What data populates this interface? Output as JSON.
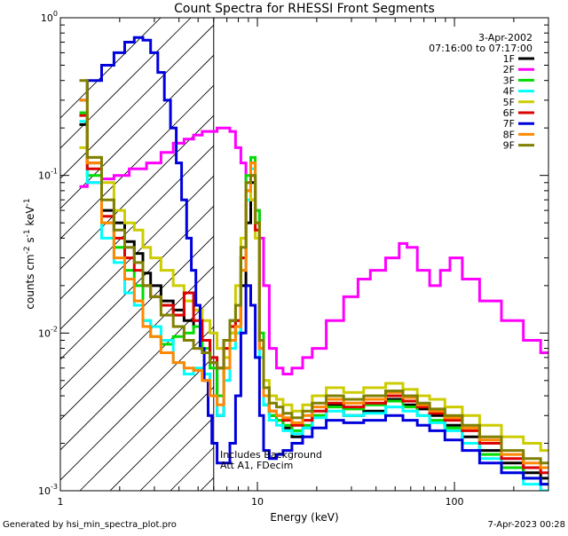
{
  "chart_data": {
    "type": "line",
    "title": "Count Spectra for RHESSI Front Segments",
    "xlabel": "Energy (keV)",
    "ylabel": "counts cm",
    "ylabel_sup1": "-2",
    "ylabel_mid": " s",
    "ylabel_sup2": "-1",
    "ylabel_mid2": " keV",
    "ylabel_sup3": "-1",
    "xscale": "log",
    "yscale": "log",
    "xlim": [
      1,
      300
    ],
    "ylim": [
      0.001,
      1
    ],
    "x_ticks": [
      {
        "value": 1,
        "label": "1"
      },
      {
        "value": 10,
        "label": "10"
      },
      {
        "value": 100,
        "label": "100"
      }
    ],
    "y_ticks": [
      {
        "value": 0.001,
        "base": "10",
        "exp": "-3"
      },
      {
        "value": 0.01,
        "base": "10",
        "exp": "-2"
      },
      {
        "value": 0.1,
        "base": "10",
        "exp": "-1"
      },
      {
        "value": 1,
        "base": "10",
        "exp": "0"
      }
    ],
    "attenuator_edge_kev": 6,
    "date": "3-Apr-2002",
    "time_range": "07:16:00 to 07:17:00",
    "annotations": [
      "Includes Background",
      "Att A1, FDecim"
    ],
    "footer_left": "Generated by hsi_min_spectra_plot.pro",
    "footer_right": "7-Apr-2023 00:28",
    "series": [
      {
        "name": "1F",
        "color": "#000000",
        "x": [
          1.25,
          1.5,
          1.75,
          2,
          2.25,
          2.5,
          2.75,
          3,
          3.5,
          4,
          4.5,
          5,
          5.5,
          6,
          6.5,
          7,
          7.5,
          8,
          8.5,
          9,
          9.5,
          10,
          10.5,
          11,
          12,
          13,
          14,
          16,
          18,
          20,
          25,
          30,
          40,
          50,
          60,
          70,
          80,
          100,
          120,
          150,
          200,
          250,
          300
        ],
        "y": [
          0.21,
          0.12,
          0.06,
          0.05,
          0.038,
          0.032,
          0.024,
          0.02,
          0.016,
          0.014,
          0.012,
          0.011,
          0.009,
          0.0065,
          0.003,
          0.009,
          0.012,
          0.01,
          0.02,
          0.05,
          0.09,
          0.05,
          0.008,
          0.0035,
          0.003,
          0.0028,
          0.0025,
          0.0022,
          0.0025,
          0.003,
          0.0035,
          0.003,
          0.0032,
          0.0038,
          0.0035,
          0.0033,
          0.003,
          0.0026,
          0.0022,
          0.0018,
          0.0015,
          0.0013,
          0.0012
        ]
      },
      {
        "name": "2F",
        "color": "#ff00ff",
        "x": [
          1.25,
          1.5,
          1.75,
          2,
          2.5,
          3,
          3.5,
          4,
          4.5,
          5,
          5.5,
          6,
          6.5,
          7,
          7.5,
          8,
          8.5,
          9,
          9.5,
          10,
          10.5,
          11,
          12,
          13,
          14,
          16,
          18,
          20,
          25,
          30,
          35,
          40,
          50,
          55,
          60,
          70,
          80,
          90,
          100,
          120,
          150,
          200,
          250,
          300
        ],
        "y": [
          0.085,
          0.09,
          0.095,
          0.1,
          0.11,
          0.12,
          0.14,
          0.16,
          0.17,
          0.18,
          0.19,
          0.19,
          0.2,
          0.2,
          0.19,
          0.15,
          0.12,
          0.09,
          0.07,
          0.06,
          0.04,
          0.02,
          0.008,
          0.006,
          0.0055,
          0.006,
          0.007,
          0.008,
          0.012,
          0.017,
          0.022,
          0.025,
          0.03,
          0.037,
          0.035,
          0.025,
          0.02,
          0.025,
          0.03,
          0.022,
          0.016,
          0.012,
          0.009,
          0.0075
        ]
      },
      {
        "name": "3F",
        "color": "#00dd00",
        "x": [
          1.25,
          1.5,
          1.75,
          2,
          2.25,
          2.5,
          2.75,
          3,
          3.5,
          4,
          4.5,
          5,
          5.5,
          6,
          6.5,
          7,
          7.5,
          8,
          8.5,
          9,
          9.5,
          10,
          10.5,
          11,
          12,
          13,
          14,
          16,
          18,
          20,
          25,
          30,
          40,
          50,
          60,
          70,
          80,
          100,
          120,
          150,
          200,
          250,
          300
        ],
        "y": [
          0.25,
          0.1,
          0.05,
          0.035,
          0.025,
          0.02,
          0.012,
          0.0095,
          0.0085,
          0.0095,
          0.01,
          0.011,
          0.008,
          0.006,
          0.004,
          0.006,
          0.01,
          0.012,
          0.03,
          0.1,
          0.13,
          0.06,
          0.01,
          0.004,
          0.003,
          0.0028,
          0.0026,
          0.0024,
          0.0026,
          0.003,
          0.0034,
          0.0033,
          0.0035,
          0.0037,
          0.0034,
          0.003,
          0.0028,
          0.0025,
          0.002,
          0.0017,
          0.0014,
          0.0012,
          0.0011
        ]
      },
      {
        "name": "4F",
        "color": "#00ffff",
        "x": [
          1.25,
          1.5,
          1.75,
          2,
          2.25,
          2.5,
          2.75,
          3,
          3.5,
          4,
          4.5,
          5,
          5.5,
          6,
          6.5,
          7,
          7.5,
          8,
          8.5,
          9,
          9.5,
          10,
          10.5,
          11,
          12,
          13,
          14,
          16,
          18,
          20,
          25,
          30,
          40,
          50,
          60,
          70,
          80,
          100,
          120,
          150,
          200,
          250,
          300
        ],
        "y": [
          0.22,
          0.09,
          0.04,
          0.028,
          0.018,
          0.015,
          0.012,
          0.011,
          0.009,
          0.0065,
          0.0055,
          0.006,
          0.0055,
          0.004,
          0.003,
          0.005,
          0.008,
          0.01,
          0.025,
          0.07,
          0.11,
          0.05,
          0.007,
          0.0035,
          0.0028,
          0.0026,
          0.0024,
          0.0023,
          0.0025,
          0.0029,
          0.0032,
          0.003,
          0.0031,
          0.0034,
          0.0032,
          0.003,
          0.0027,
          0.0024,
          0.002,
          0.0016,
          0.0013,
          0.0011,
          0.001
        ]
      },
      {
        "name": "5F",
        "color": "#cccc00",
        "x": [
          1.25,
          1.5,
          1.75,
          2,
          2.25,
          2.5,
          2.75,
          3,
          3.5,
          4,
          4.5,
          5,
          5.5,
          6,
          6.5,
          7,
          7.5,
          8,
          8.5,
          9,
          9.5,
          10,
          10.5,
          11,
          12,
          13,
          14,
          16,
          18,
          20,
          25,
          30,
          40,
          50,
          60,
          70,
          80,
          100,
          120,
          150,
          200,
          250,
          300
        ],
        "y": [
          0.15,
          0.13,
          0.09,
          0.06,
          0.05,
          0.045,
          0.035,
          0.03,
          0.025,
          0.02,
          0.016,
          0.014,
          0.012,
          0.01,
          0.008,
          0.007,
          0.01,
          0.02,
          0.04,
          0.08,
          0.07,
          0.04,
          0.009,
          0.005,
          0.004,
          0.0038,
          0.0035,
          0.0032,
          0.0035,
          0.004,
          0.0045,
          0.0042,
          0.0045,
          0.0048,
          0.0044,
          0.004,
          0.0038,
          0.0034,
          0.003,
          0.0026,
          0.0022,
          0.002,
          0.0018
        ]
      },
      {
        "name": "6F",
        "color": "#dd0000",
        "x": [
          1.25,
          1.5,
          1.75,
          2,
          2.25,
          2.5,
          2.75,
          3,
          3.5,
          4,
          4.5,
          5,
          5.5,
          6,
          6.5,
          7,
          7.5,
          8,
          8.5,
          9,
          9.5,
          10,
          10.5,
          11,
          12,
          13,
          14,
          16,
          18,
          20,
          25,
          30,
          40,
          50,
          60,
          70,
          80,
          100,
          120,
          150,
          200,
          250,
          300
        ],
        "y": [
          0.24,
          0.11,
          0.055,
          0.04,
          0.03,
          0.025,
          0.02,
          0.017,
          0.015,
          0.013,
          0.018,
          0.012,
          0.009,
          0.007,
          0.006,
          0.008,
          0.011,
          0.012,
          0.03,
          0.08,
          0.1,
          0.045,
          0.008,
          0.004,
          0.0032,
          0.003,
          0.0028,
          0.0026,
          0.0028,
          0.0032,
          0.0036,
          0.0034,
          0.0036,
          0.004,
          0.0037,
          0.0034,
          0.0031,
          0.0028,
          0.0024,
          0.002,
          0.0016,
          0.0014,
          0.0013
        ]
      },
      {
        "name": "7F",
        "color": "#0000dd",
        "x": [
          1.25,
          1.5,
          1.75,
          2,
          2.25,
          2.5,
          2.75,
          3,
          3.25,
          3.5,
          3.75,
          4,
          4.25,
          4.5,
          4.75,
          5,
          5.25,
          5.5,
          5.75,
          6,
          6.5,
          7,
          7.5,
          8,
          8.5,
          9,
          9.5,
          10,
          10.5,
          11,
          12,
          13,
          14,
          16,
          18,
          20,
          25,
          30,
          40,
          50,
          60,
          70,
          80,
          100,
          120,
          150,
          200,
          250,
          300
        ],
        "y": [
          0.3,
          0.4,
          0.5,
          0.6,
          0.7,
          0.75,
          0.72,
          0.6,
          0.45,
          0.3,
          0.2,
          0.12,
          0.07,
          0.04,
          0.025,
          0.015,
          0.008,
          0.005,
          0.003,
          0.002,
          0.0015,
          0.0015,
          0.002,
          0.004,
          0.01,
          0.02,
          0.015,
          0.007,
          0.003,
          0.0018,
          0.0016,
          0.0017,
          0.0018,
          0.002,
          0.0022,
          0.0025,
          0.0028,
          0.0027,
          0.0028,
          0.003,
          0.0028,
          0.0026,
          0.0024,
          0.0021,
          0.0018,
          0.0015,
          0.0013,
          0.0012,
          0.0011
        ]
      },
      {
        "name": "8F",
        "color": "#ff8800",
        "x": [
          1.25,
          1.5,
          1.75,
          2,
          2.25,
          2.5,
          2.75,
          3,
          3.5,
          4,
          4.5,
          5,
          5.5,
          6,
          6.5,
          7,
          7.5,
          8,
          8.5,
          9,
          9.5,
          10,
          10.5,
          11,
          12,
          13,
          14,
          16,
          18,
          20,
          25,
          30,
          40,
          50,
          60,
          70,
          80,
          100,
          120,
          150,
          200,
          250,
          300
        ],
        "y": [
          0.3,
          0.12,
          0.05,
          0.03,
          0.022,
          0.016,
          0.011,
          0.0095,
          0.0075,
          0.0065,
          0.006,
          0.0058,
          0.005,
          0.004,
          0.0035,
          0.006,
          0.009,
          0.011,
          0.025,
          0.08,
          0.12,
          0.05,
          0.008,
          0.004,
          0.0032,
          0.003,
          0.0029,
          0.0027,
          0.003,
          0.0034,
          0.0038,
          0.0036,
          0.0038,
          0.0042,
          0.0039,
          0.0035,
          0.0032,
          0.0029,
          0.0025,
          0.0021,
          0.0017,
          0.0015,
          0.0014
        ]
      },
      {
        "name": "9F",
        "color": "#808000",
        "x": [
          1.25,
          1.5,
          1.75,
          2,
          2.25,
          2.5,
          2.75,
          3,
          3.5,
          4,
          4.5,
          5,
          5.5,
          6,
          6.5,
          7,
          7.5,
          8,
          8.5,
          9,
          9.5,
          10,
          10.5,
          11,
          12,
          13,
          14,
          16,
          18,
          20,
          25,
          30,
          40,
          50,
          60,
          70,
          80,
          100,
          120,
          150,
          200,
          250,
          300
        ],
        "y": [
          0.4,
          0.13,
          0.07,
          0.045,
          0.035,
          0.028,
          0.02,
          0.017,
          0.013,
          0.011,
          0.009,
          0.008,
          0.0075,
          0.0065,
          0.006,
          0.009,
          0.012,
          0.015,
          0.035,
          0.09,
          0.1,
          0.05,
          0.009,
          0.0045,
          0.0036,
          0.0034,
          0.0031,
          0.0029,
          0.0032,
          0.0036,
          0.004,
          0.0038,
          0.004,
          0.0043,
          0.004,
          0.0036,
          0.0033,
          0.003,
          0.0026,
          0.0022,
          0.0018,
          0.0016,
          0.0015
        ]
      }
    ]
  }
}
